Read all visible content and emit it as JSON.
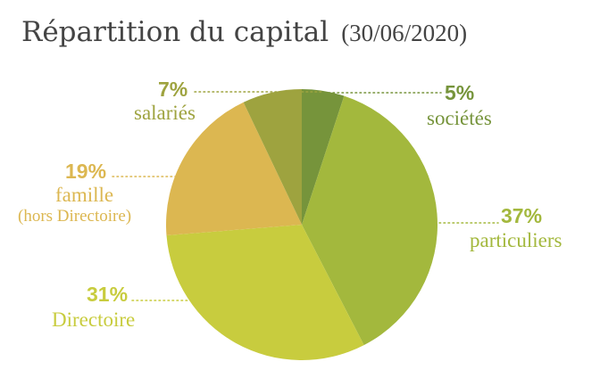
{
  "chart_data": {
    "type": "pie",
    "title": "Répartition du capital",
    "subtitle": "(30/06/2020)",
    "start_angle_deg": 0,
    "direction": "clockwise",
    "slices": [
      {
        "key": "societes",
        "percent_label": "5%",
        "value": 5,
        "label": "sociétés",
        "sublabel": "",
        "color": "#76943b"
      },
      {
        "key": "particuliers",
        "percent_label": "37%",
        "value": 37,
        "label": "particuliers",
        "sublabel": "",
        "color": "#a3b83d"
      },
      {
        "key": "directoire",
        "percent_label": "31%",
        "value": 31,
        "label": "Directoire",
        "sublabel": "",
        "color": "#c8cc3e"
      },
      {
        "key": "famille",
        "percent_label": "19%",
        "value": 19,
        "label": "famille",
        "sublabel": "(hors Directoire)",
        "color": "#dcb751"
      },
      {
        "key": "salaries",
        "percent_label": "7%",
        "value": 7,
        "label": "salariés",
        "sublabel": "",
        "color": "#9ea33f"
      }
    ]
  }
}
